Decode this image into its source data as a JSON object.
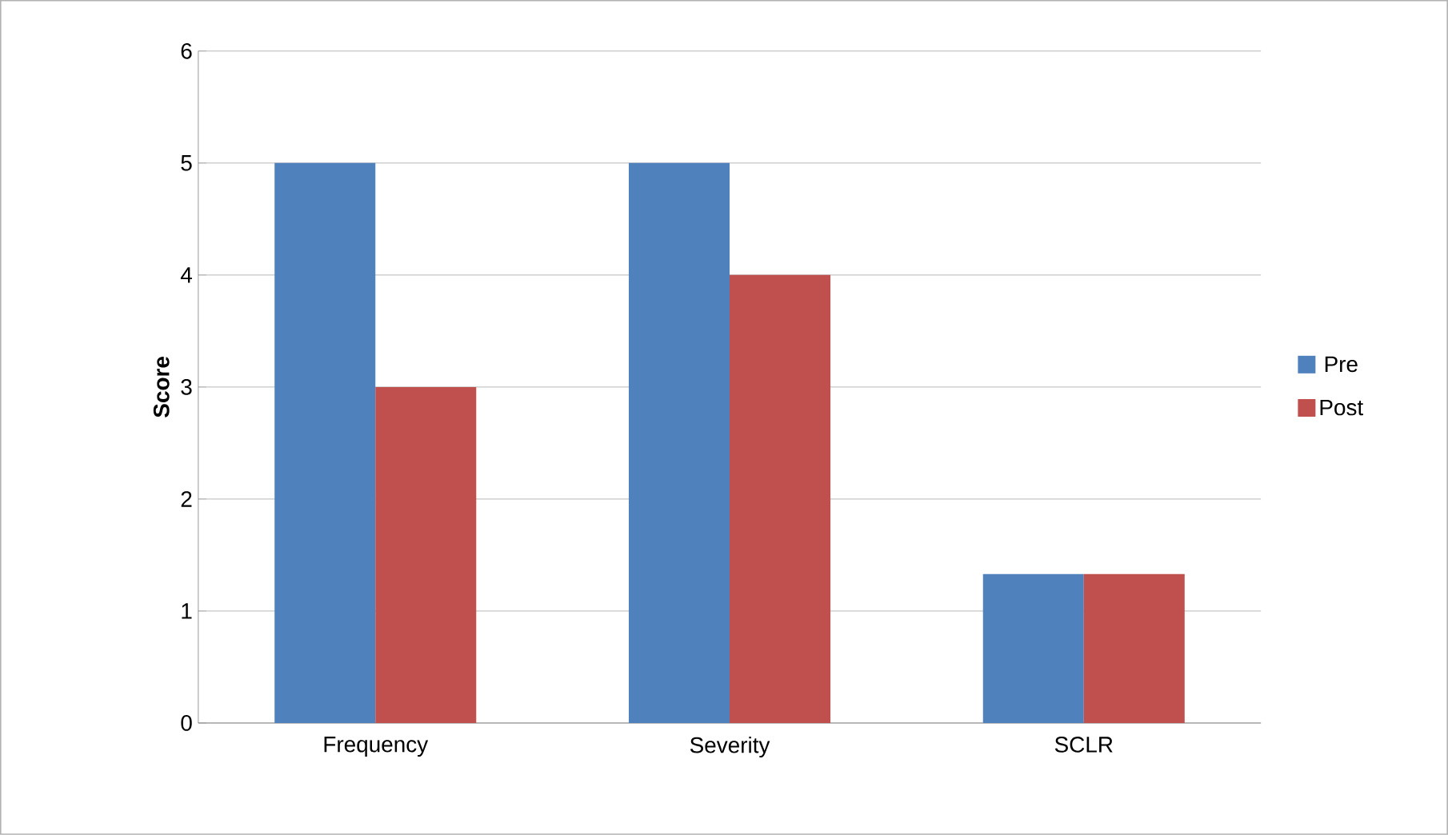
{
  "chart_data": {
    "type": "bar",
    "ylabel": "**Score**",
    "categories": [
      "Frequency",
      "Severity",
      "SCLR"
    ],
    "series": [
      {
        "name": "Pre",
        "color": "#4f81bd",
        "values": [
          5,
          5,
          1.33
        ]
      },
      {
        "name": "Post",
        "color": "#c0504d",
        "values": [
          3,
          4,
          1.33
        ]
      }
    ],
    "ylim": [
      0,
      6
    ],
    "yticks": [
      0,
      1,
      2,
      3,
      4,
      5,
      6
    ],
    "grid": "y",
    "legend": "right"
  }
}
